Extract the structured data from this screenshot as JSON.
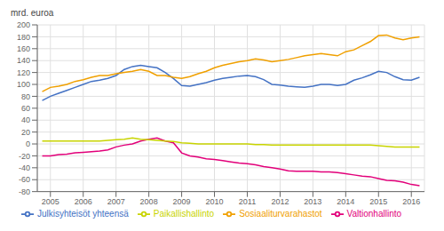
{
  "chart_data": {
    "type": "line",
    "ylabel": "mrd. euroa",
    "xlim": [
      2004.6,
      2016.4
    ],
    "xticks": [
      2005,
      2006,
      2007,
      2008,
      2009,
      2010,
      2011,
      2012,
      2013,
      2014,
      2015,
      2016
    ],
    "ylim": [
      -80,
      200
    ],
    "yticks": [
      -80,
      -60,
      -40,
      -20,
      0,
      20,
      40,
      60,
      80,
      100,
      120,
      140,
      160,
      180,
      200
    ],
    "grid": true,
    "legend": "bottom",
    "x": [
      2004.75,
      2005.0,
      2005.25,
      2005.5,
      2005.75,
      2006.0,
      2006.25,
      2006.5,
      2006.75,
      2007.0,
      2007.25,
      2007.5,
      2007.75,
      2008.0,
      2008.25,
      2008.5,
      2008.75,
      2009.0,
      2009.25,
      2009.5,
      2009.75,
      2010.0,
      2010.25,
      2010.5,
      2010.75,
      2011.0,
      2011.25,
      2011.5,
      2011.75,
      2012.0,
      2012.25,
      2012.5,
      2012.75,
      2013.0,
      2013.25,
      2013.5,
      2013.75,
      2014.0,
      2014.25,
      2014.5,
      2014.75,
      2015.0,
      2015.25,
      2015.5,
      2015.75,
      2016.0,
      2016.25
    ],
    "series": [
      {
        "name": "Julkisyhteisöt yhteensä",
        "color": "#4472c4",
        "values": [
          73,
          80,
          85,
          90,
          95,
          100,
          105,
          107,
          110,
          115,
          125,
          130,
          132,
          130,
          128,
          120,
          110,
          98,
          97,
          100,
          103,
          107,
          110,
          112,
          114,
          115,
          113,
          108,
          100,
          99,
          97,
          96,
          95,
          97,
          100,
          100,
          98,
          100,
          107,
          111,
          116,
          122,
          120,
          113,
          108,
          107,
          112
        ]
      },
      {
        "name": "Valtionhallinto",
        "color": "#e2007a",
        "values": [
          -20,
          -20,
          -18,
          -17,
          -15,
          -14,
          -13,
          -12,
          -10,
          -5,
          -2,
          0,
          5,
          8,
          10,
          5,
          2,
          -15,
          -20,
          -22,
          -25,
          -26,
          -28,
          -30,
          -32,
          -33,
          -35,
          -38,
          -40,
          -42,
          -45,
          -46,
          -46,
          -46,
          -47,
          -47,
          -48,
          -50,
          -52,
          -54,
          -55,
          -58,
          -61,
          -62,
          -64,
          -68,
          -70
        ]
      },
      {
        "name": "Paikallishallinto",
        "color": "#c8d400",
        "values": [
          5,
          5,
          5,
          5,
          5,
          5,
          5,
          5,
          6,
          7,
          8,
          10,
          8,
          7,
          6,
          5,
          4,
          2,
          1,
          0,
          0,
          0,
          0,
          0,
          0,
          0,
          -1,
          -1,
          -2,
          -2,
          -2,
          -2,
          -2,
          -2,
          -2,
          -2,
          -2,
          -2,
          -2,
          -2,
          -2,
          -3,
          -4,
          -5,
          -5,
          -5,
          -5
        ]
      },
      {
        "name": "Sosiaaliturvarahastot",
        "color": "#f0a000",
        "values": [
          88,
          95,
          97,
          100,
          105,
          108,
          112,
          115,
          115,
          118,
          120,
          122,
          125,
          122,
          115,
          115,
          112,
          110,
          113,
          118,
          122,
          128,
          132,
          135,
          138,
          140,
          143,
          141,
          138,
          140,
          142,
          145,
          148,
          150,
          152,
          150,
          148,
          155,
          158,
          165,
          172,
          182,
          183,
          178,
          175,
          178,
          180
        ]
      }
    ]
  }
}
